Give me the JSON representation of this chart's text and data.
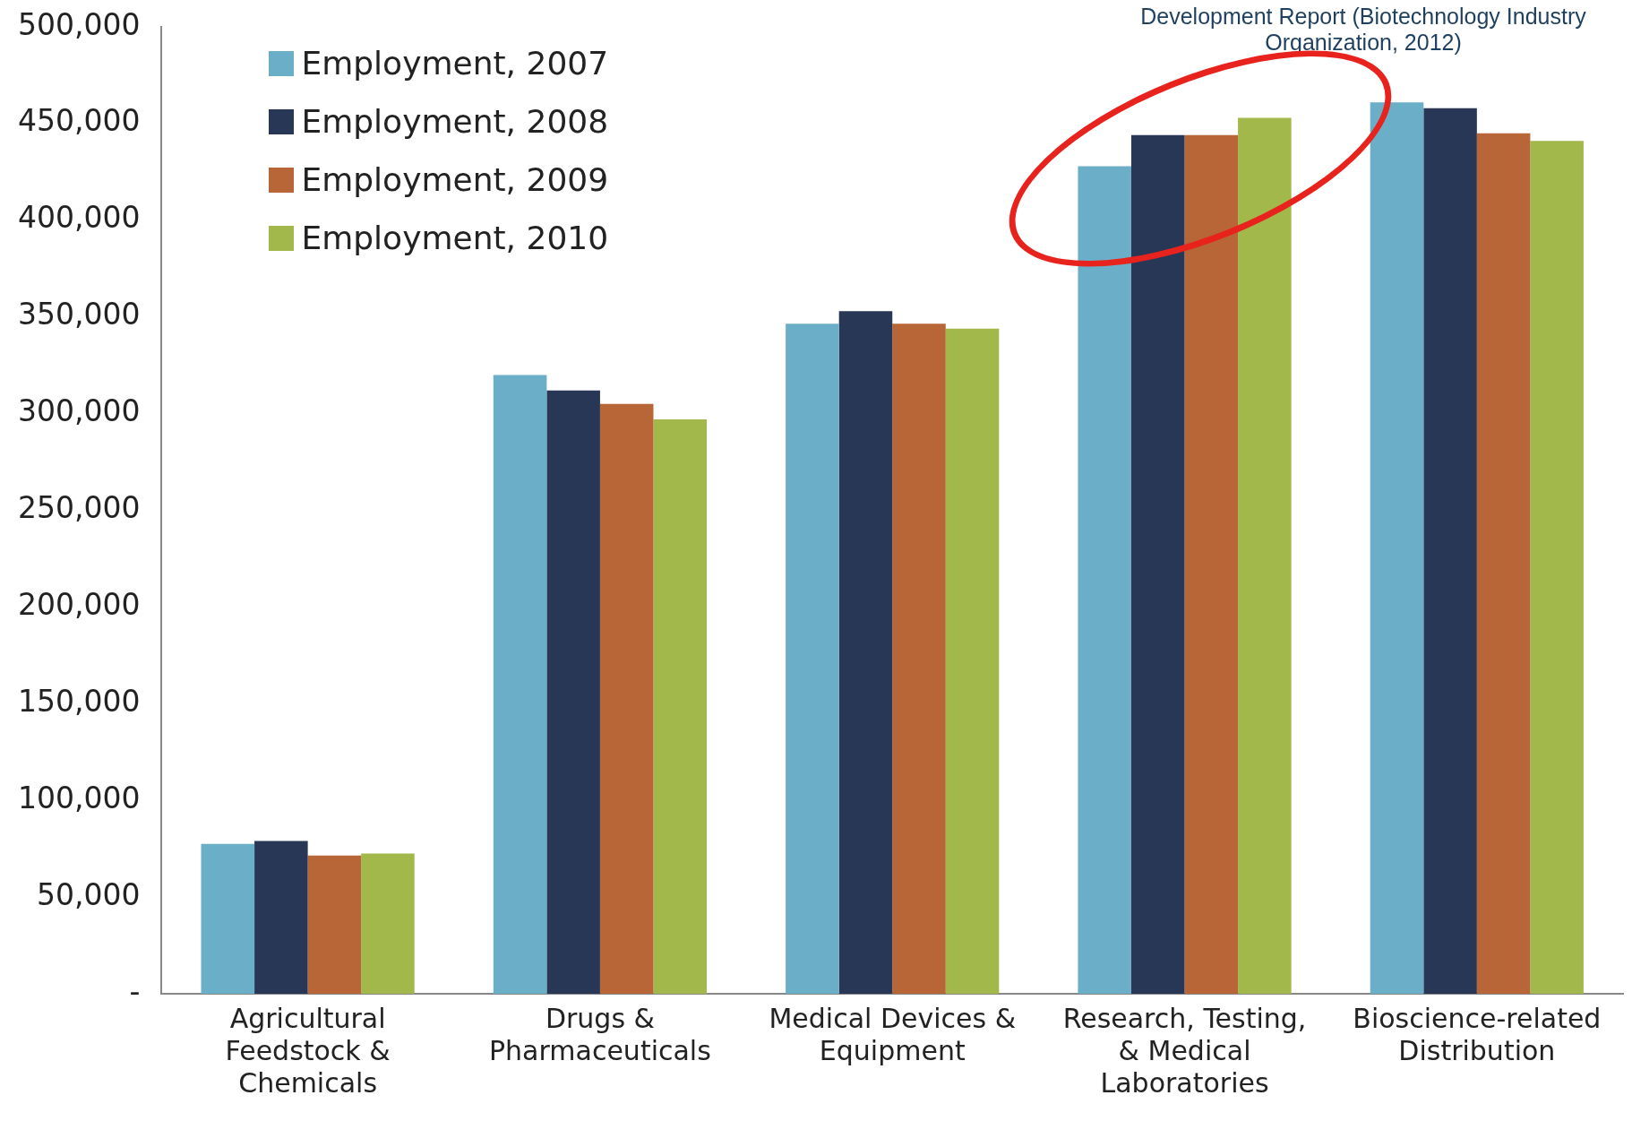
{
  "chart_data": {
    "type": "bar",
    "categories": [
      "Agricultural Feedstock & Chemicals",
      "Drugs & Pharmaceuticals",
      "Medical Devices & Equipment",
      "Research, Testing, & Medical Laboratories",
      "Bioscience-related Distribution"
    ],
    "series": [
      {
        "name": "Employment, 2007",
        "color": "#6aafc7",
        "values": [
          77500,
          320000,
          346500,
          428000,
          461000
        ]
      },
      {
        "name": "Employment, 2008",
        "color": "#283756",
        "values": [
          79000,
          312000,
          353000,
          444000,
          458000
        ]
      },
      {
        "name": "Employment, 2009",
        "color": "#b86637",
        "values": [
          71500,
          305000,
          346500,
          444000,
          445000
        ]
      },
      {
        "name": "Employment, 2010",
        "color": "#a3b84b",
        "values": [
          72500,
          297000,
          344000,
          453000,
          441000
        ]
      }
    ],
    "ylim": [
      0,
      500000
    ],
    "yticks": [
      {
        "value": 0,
        "label": "-"
      },
      {
        "value": 50000,
        "label": "50,000"
      },
      {
        "value": 100000,
        "label": "100,000"
      },
      {
        "value": 150000,
        "label": "150,000"
      },
      {
        "value": 200000,
        "label": "200,000"
      },
      {
        "value": 250000,
        "label": "250,000"
      },
      {
        "value": 300000,
        "label": "300,000"
      },
      {
        "value": 350000,
        "label": "350,000"
      },
      {
        "value": 400000,
        "label": "400,000"
      },
      {
        "value": 450000,
        "label": "450,000"
      },
      {
        "value": 500000,
        "label": "500,000"
      }
    ],
    "grid": false,
    "legend": "top left",
    "annotations": [
      "Development Report (Biotechnology Industry Organization, 2012)"
    ]
  }
}
